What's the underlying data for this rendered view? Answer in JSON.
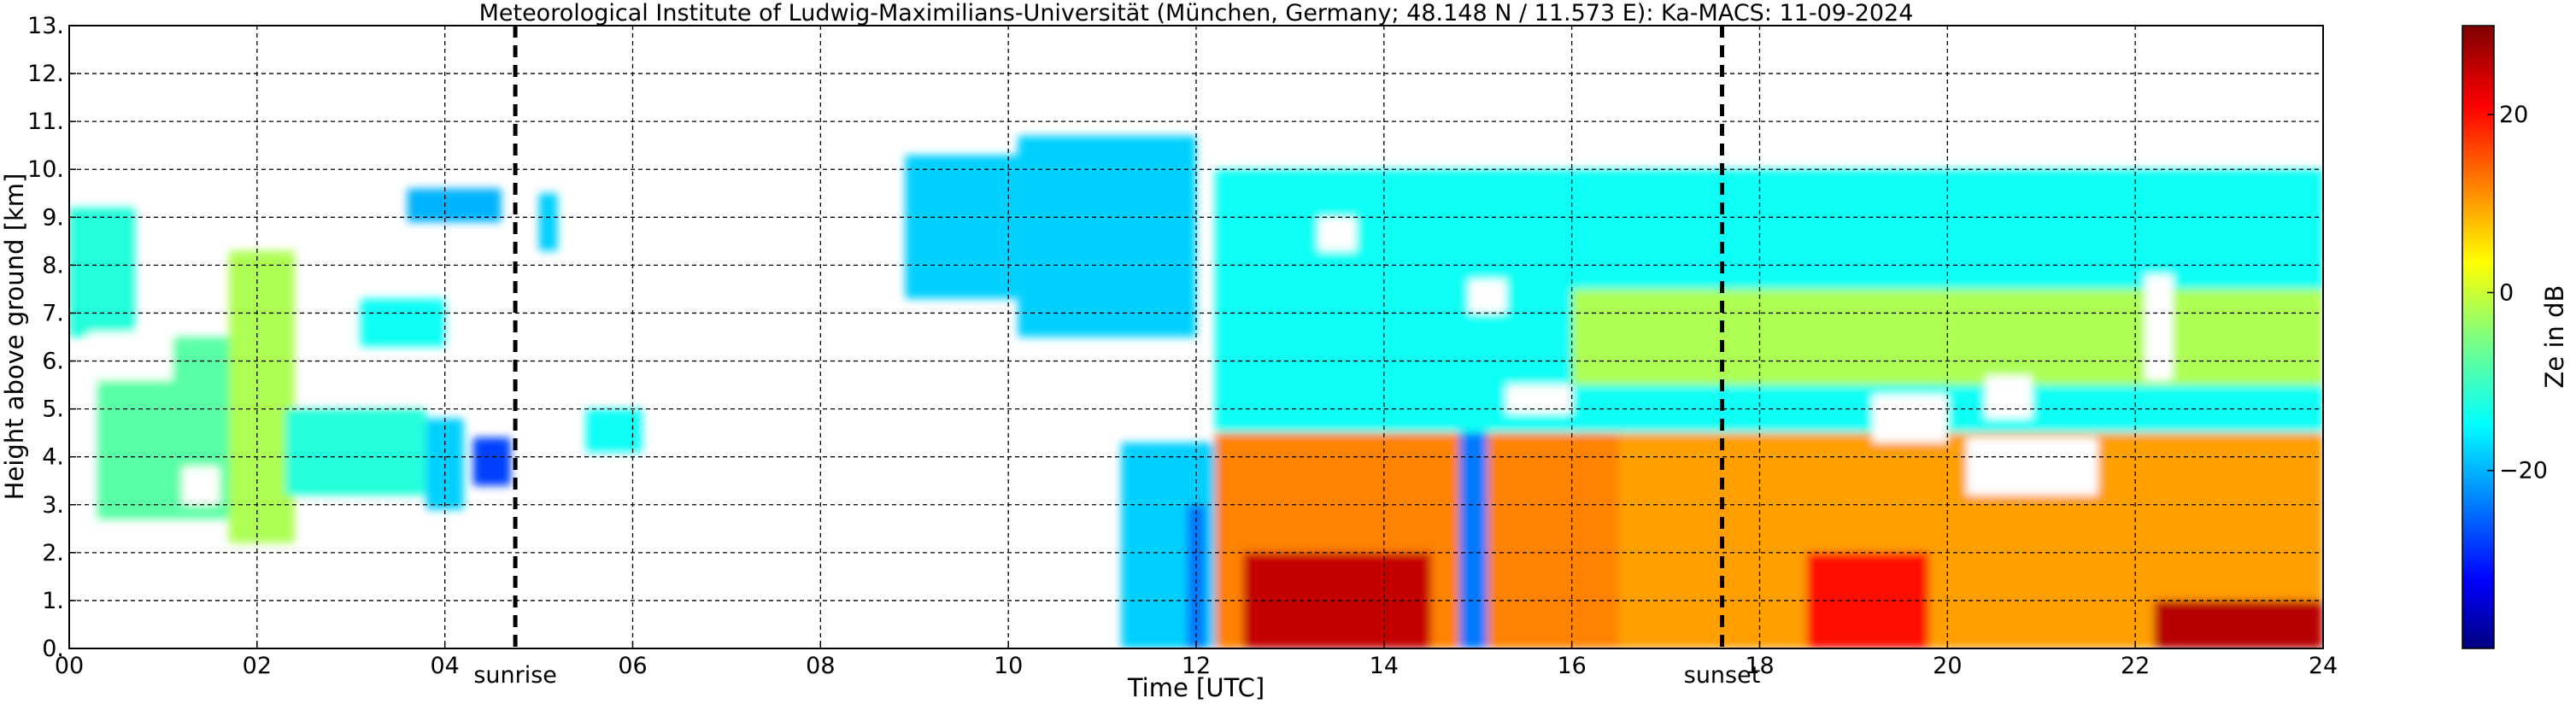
{
  "chart_data": {
    "type": "heatmap",
    "title": "Meteorological Institute of Ludwig-Maximilians-Universität (München, Germany; 48.148 N / 11.573 E):    Ka-MACS: 11-09-2024",
    "xlabel": "Time [UTC]",
    "ylabel": "Height above ground [km]",
    "xlim": [
      0,
      24
    ],
    "ylim": [
      0,
      13
    ],
    "x_ticks": [
      0,
      2,
      4,
      6,
      8,
      10,
      12,
      14,
      16,
      18,
      20,
      22,
      24
    ],
    "x_tick_labels": [
      "00",
      "02",
      "04",
      "06",
      "08",
      "10",
      "12",
      "14",
      "16",
      "18",
      "20",
      "22",
      "24"
    ],
    "y_ticks": [
      0,
      1,
      2,
      3,
      4,
      5,
      6,
      7,
      8,
      9,
      10,
      11,
      12,
      13
    ],
    "y_tick_labels": [
      "0.",
      "1.",
      "2.",
      "3.",
      "4.",
      "5.",
      "6.",
      "7.",
      "8.",
      "9.",
      "10.",
      "11.",
      "12.",
      "13."
    ],
    "grid": true,
    "colorbar": {
      "label": "Ze in dB",
      "range": [
        -40,
        30
      ],
      "ticks": [
        -20,
        0,
        20
      ],
      "tick_labels": [
        "−20",
        "0",
        "20"
      ],
      "colormap": "jet"
    },
    "vertical_markers": [
      {
        "x": 4.75,
        "label": "sunrise"
      },
      {
        "x": 17.6,
        "label": "sunset"
      }
    ],
    "echo_regions": [
      {
        "t0": 0.0,
        "t1": 0.7,
        "h0": 6.5,
        "h1": 9.2,
        "ze": -12
      },
      {
        "t0": 0.3,
        "t1": 1.9,
        "h0": 2.7,
        "h1": 6.5,
        "ze": -8
      },
      {
        "t0": 1.7,
        "t1": 2.4,
        "h0": 2.2,
        "h1": 8.3,
        "ze": -2
      },
      {
        "t0": 2.3,
        "t1": 3.8,
        "h0": 3.2,
        "h1": 5.0,
        "ze": -12
      },
      {
        "t0": 3.8,
        "t1": 4.2,
        "h0": 2.9,
        "h1": 4.8,
        "ze": -18
      },
      {
        "t0": 3.1,
        "t1": 4.0,
        "h0": 6.3,
        "h1": 7.3,
        "ze": -14
      },
      {
        "t0": 3.6,
        "t1": 4.6,
        "h0": 8.9,
        "h1": 9.6,
        "ze": -20
      },
      {
        "t0": 4.3,
        "t1": 4.7,
        "h0": 3.4,
        "h1": 4.4,
        "ze": -28
      },
      {
        "t0": 5.0,
        "t1": 5.2,
        "h0": 8.3,
        "h1": 9.5,
        "ze": -18
      },
      {
        "t0": 5.5,
        "t1": 6.1,
        "h0": 4.1,
        "h1": 5.0,
        "ze": -14
      },
      {
        "t0": 8.9,
        "t1": 10.1,
        "h0": 7.3,
        "h1": 10.3,
        "ze": -18
      },
      {
        "t0": 10.1,
        "t1": 12.0,
        "h0": 6.5,
        "h1": 10.7,
        "ze": -18
      },
      {
        "t0": 11.2,
        "t1": 12.5,
        "h0": 0.0,
        "h1": 4.3,
        "ze": -18
      },
      {
        "t0": 12.2,
        "t1": 24.0,
        "h0": 4.5,
        "h1": 10.0,
        "ze": -14
      },
      {
        "t0": 12.2,
        "t1": 16.5,
        "h0": 0.0,
        "h1": 4.5,
        "ze": 12
      },
      {
        "t0": 16.5,
        "t1": 24.0,
        "h0": 0.0,
        "h1": 4.5,
        "ze": 10
      },
      {
        "t0": 12.5,
        "t1": 14.5,
        "h0": 0.0,
        "h1": 2.0,
        "ze": 25
      },
      {
        "t0": 22.2,
        "t1": 24.0,
        "h0": 0.0,
        "h1": 1.0,
        "ze": 26
      },
      {
        "t0": 18.5,
        "t1": 19.8,
        "h0": 0.0,
        "h1": 2.0,
        "ze": 20
      },
      {
        "t0": 16.0,
        "t1": 24.0,
        "h0": 5.5,
        "h1": 7.5,
        "ze": -2
      },
      {
        "t0": 14.8,
        "t1": 15.1,
        "h0": 0.0,
        "h1": 4.5,
        "ze": -24
      },
      {
        "t0": 11.9,
        "t1": 12.1,
        "h0": 0.0,
        "h1": 3.0,
        "ze": -24
      }
    ],
    "no_echo_regions": [
      {
        "t0": 0.2,
        "t1": 1.1,
        "h0": 5.6,
        "h1": 6.6
      },
      {
        "t0": 1.2,
        "t1": 1.6,
        "h0": 3.0,
        "h1": 3.8
      },
      {
        "t0": 15.3,
        "t1": 16.0,
        "h0": 4.9,
        "h1": 5.5
      },
      {
        "t0": 20.4,
        "t1": 20.9,
        "h0": 4.8,
        "h1": 5.7
      },
      {
        "t0": 20.2,
        "t1": 21.6,
        "h0": 3.2,
        "h1": 4.4
      },
      {
        "t0": 19.2,
        "t1": 20.0,
        "h0": 4.3,
        "h1": 5.3
      },
      {
        "t0": 14.9,
        "t1": 15.3,
        "h0": 7.0,
        "h1": 7.7
      },
      {
        "t0": 13.3,
        "t1": 13.7,
        "h0": 8.3,
        "h1": 9.0
      },
      {
        "t0": 22.1,
        "t1": 22.4,
        "h0": 5.6,
        "h1": 7.8
      }
    ]
  }
}
